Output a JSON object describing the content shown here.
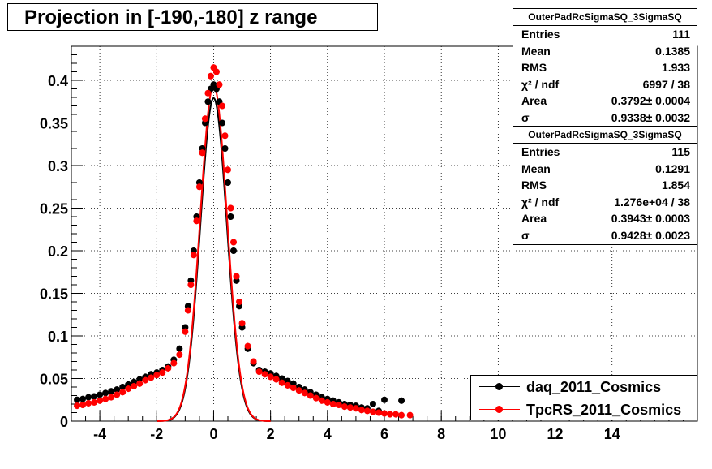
{
  "title": "Projection in [-190,-180] z range",
  "stats": [
    {
      "name": "OuterPadRcSigmaSQ_3SigmaSQ",
      "rows": [
        {
          "label": "Entries",
          "value": "111"
        },
        {
          "label": "Mean",
          "value": "0.1385"
        },
        {
          "label": "RMS",
          "value": "1.933"
        },
        {
          "label": "χ² / ndf",
          "value": "6997 / 38"
        },
        {
          "label": "Area",
          "value": "0.3792± 0.0004"
        },
        {
          "label": "σ",
          "value": "0.9338± 0.0032"
        }
      ]
    },
    {
      "name": "OuterPadRcSigmaSQ_3SigmaSQ",
      "rows": [
        {
          "label": "Entries",
          "value": "115"
        },
        {
          "label": "Mean",
          "value": "0.1291"
        },
        {
          "label": "RMS",
          "value": "1.854"
        },
        {
          "label": "χ² / ndf",
          "value": "1.276e+04 / 38"
        },
        {
          "label": "Area",
          "value": "0.3943± 0.0003"
        },
        {
          "label": "σ",
          "value": "0.9428± 0.0023"
        }
      ]
    }
  ],
  "legend": [
    {
      "name": "daq_2011_Cosmics",
      "color": "#000000"
    },
    {
      "name": "TpcRS_2011_Cosmics",
      "color": "#ff0000"
    }
  ],
  "chart_data": {
    "type": "scatter",
    "title": "Projection in [-190,-180] z range",
    "xlim": [
      -5,
      17
    ],
    "ylim": [
      0,
      0.44
    ],
    "x_ticks": [
      -4,
      -2,
      0,
      2,
      4,
      6,
      8,
      10,
      12,
      14
    ],
    "y_ticks": [
      0,
      0.05,
      0.1,
      0.15,
      0.2,
      0.25,
      0.3,
      0.35,
      0.4
    ],
    "y_tick_labels": [
      "0",
      "0.05",
      "0.1",
      "0.15",
      "0.2",
      "0.25",
      "0.3",
      "0.35",
      "0.4"
    ],
    "grid": true,
    "legend_position": "bottom-right",
    "series": [
      {
        "name": "daq_2011_Cosmics",
        "color": "#000000",
        "points": [
          [
            -4.8,
            0.025
          ],
          [
            -4.6,
            0.026
          ],
          [
            -4.4,
            0.028
          ],
          [
            -4.2,
            0.029
          ],
          [
            -4.0,
            0.031
          ],
          [
            -3.8,
            0.033
          ],
          [
            -3.6,
            0.035
          ],
          [
            -3.4,
            0.037
          ],
          [
            -3.2,
            0.04
          ],
          [
            -3.0,
            0.043
          ],
          [
            -2.8,
            0.046
          ],
          [
            -2.6,
            0.049
          ],
          [
            -2.4,
            0.052
          ],
          [
            -2.2,
            0.055
          ],
          [
            -2.0,
            0.057
          ],
          [
            -1.8,
            0.06
          ],
          [
            -1.6,
            0.064
          ],
          [
            -1.4,
            0.072
          ],
          [
            -1.2,
            0.085
          ],
          [
            -1.0,
            0.11
          ],
          [
            -0.9,
            0.135
          ],
          [
            -0.8,
            0.165
          ],
          [
            -0.7,
            0.2
          ],
          [
            -0.6,
            0.24
          ],
          [
            -0.5,
            0.28
          ],
          [
            -0.4,
            0.32
          ],
          [
            -0.3,
            0.35
          ],
          [
            -0.2,
            0.375
          ],
          [
            -0.1,
            0.39
          ],
          [
            0.0,
            0.395
          ],
          [
            0.1,
            0.39
          ],
          [
            0.2,
            0.375
          ],
          [
            0.3,
            0.35
          ],
          [
            0.4,
            0.32
          ],
          [
            0.5,
            0.28
          ],
          [
            0.6,
            0.24
          ],
          [
            0.7,
            0.2
          ],
          [
            0.8,
            0.165
          ],
          [
            0.9,
            0.135
          ],
          [
            1.0,
            0.11
          ],
          [
            1.2,
            0.085
          ],
          [
            1.4,
            0.068
          ],
          [
            1.6,
            0.06
          ],
          [
            1.8,
            0.058
          ],
          [
            2.0,
            0.056
          ],
          [
            2.2,
            0.053
          ],
          [
            2.4,
            0.05
          ],
          [
            2.6,
            0.047
          ],
          [
            2.8,
            0.044
          ],
          [
            3.0,
            0.04
          ],
          [
            3.2,
            0.037
          ],
          [
            3.4,
            0.034
          ],
          [
            3.6,
            0.031
          ],
          [
            3.8,
            0.028
          ],
          [
            4.0,
            0.026
          ],
          [
            4.2,
            0.024
          ],
          [
            4.4,
            0.022
          ],
          [
            4.6,
            0.02
          ],
          [
            4.8,
            0.019
          ],
          [
            5.0,
            0.018
          ],
          [
            5.2,
            0.016
          ],
          [
            5.4,
            0.015
          ],
          [
            5.6,
            0.02
          ],
          [
            5.8,
            0.012
          ],
          [
            6.0,
            0.025
          ],
          [
            6.6,
            0.024
          ]
        ],
        "fit": {
          "area": 0.3792,
          "sigma": 0.9338,
          "xrange": [
            -2.0,
            2.0
          ]
        }
      },
      {
        "name": "TpcRS_2011_Cosmics",
        "color": "#ff0000",
        "points": [
          [
            -4.8,
            0.018
          ],
          [
            -4.6,
            0.019
          ],
          [
            -4.4,
            0.021
          ],
          [
            -4.2,
            0.022
          ],
          [
            -4.0,
            0.024
          ],
          [
            -3.8,
            0.026
          ],
          [
            -3.6,
            0.028
          ],
          [
            -3.4,
            0.031
          ],
          [
            -3.2,
            0.034
          ],
          [
            -3.0,
            0.038
          ],
          [
            -2.8,
            0.041
          ],
          [
            -2.6,
            0.044
          ],
          [
            -2.4,
            0.048
          ],
          [
            -2.2,
            0.051
          ],
          [
            -2.0,
            0.054
          ],
          [
            -1.8,
            0.057
          ],
          [
            -1.6,
            0.062
          ],
          [
            -1.4,
            0.068
          ],
          [
            -1.2,
            0.078
          ],
          [
            -1.0,
            0.105
          ],
          [
            -0.9,
            0.13
          ],
          [
            -0.8,
            0.16
          ],
          [
            -0.7,
            0.195
          ],
          [
            -0.6,
            0.235
          ],
          [
            -0.5,
            0.275
          ],
          [
            -0.4,
            0.315
          ],
          [
            -0.3,
            0.355
          ],
          [
            -0.2,
            0.385
          ],
          [
            -0.1,
            0.405
          ],
          [
            0.0,
            0.415
          ],
          [
            0.1,
            0.41
          ],
          [
            0.2,
            0.395
          ],
          [
            0.3,
            0.37
          ],
          [
            0.4,
            0.335
          ],
          [
            0.5,
            0.295
          ],
          [
            0.6,
            0.25
          ],
          [
            0.7,
            0.21
          ],
          [
            0.8,
            0.17
          ],
          [
            0.9,
            0.14
          ],
          [
            1.0,
            0.115
          ],
          [
            1.2,
            0.088
          ],
          [
            1.4,
            0.07
          ],
          [
            1.6,
            0.058
          ],
          [
            1.8,
            0.055
          ],
          [
            2.0,
            0.052
          ],
          [
            2.2,
            0.049
          ],
          [
            2.4,
            0.045
          ],
          [
            2.6,
            0.042
          ],
          [
            2.8,
            0.039
          ],
          [
            3.0,
            0.036
          ],
          [
            3.2,
            0.033
          ],
          [
            3.4,
            0.03
          ],
          [
            3.6,
            0.027
          ],
          [
            3.8,
            0.024
          ],
          [
            4.0,
            0.022
          ],
          [
            4.2,
            0.02
          ],
          [
            4.4,
            0.019
          ],
          [
            4.6,
            0.017
          ],
          [
            4.8,
            0.016
          ],
          [
            5.0,
            0.015
          ],
          [
            5.2,
            0.013
          ],
          [
            5.4,
            0.012
          ],
          [
            5.6,
            0.011
          ],
          [
            5.8,
            0.01
          ],
          [
            6.0,
            0.009
          ],
          [
            6.2,
            0.008
          ],
          [
            6.4,
            0.008
          ],
          [
            6.6,
            0.007
          ],
          [
            6.9,
            0.007
          ]
        ],
        "fit": {
          "area": 0.3943,
          "sigma": 0.9428,
          "xrange": [
            -2.0,
            2.0
          ]
        }
      }
    ]
  }
}
